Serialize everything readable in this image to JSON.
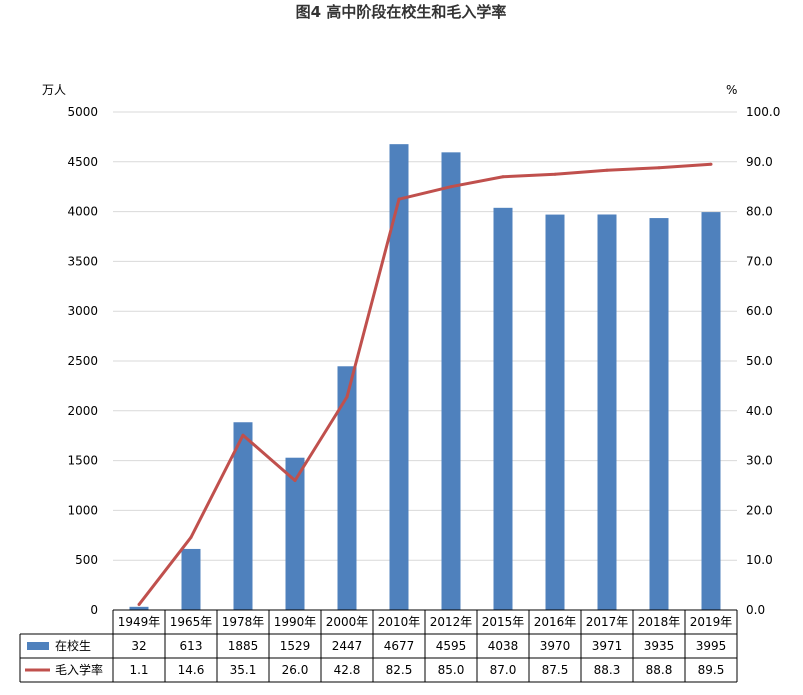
{
  "chart_data": {
    "type": "bar",
    "title": "图4 高中阶段在校生和毛入学率",
    "categories": [
      "1949年",
      "1965年",
      "1978年",
      "1990年",
      "2000年",
      "2010年",
      "2012年",
      "2015年",
      "2016年",
      "2017年",
      "2018年",
      "2019年"
    ],
    "series": [
      {
        "name": "在校生",
        "type": "bar",
        "axis": "left",
        "color": "#4f81bd",
        "values": [
          32,
          613,
          1885,
          1529,
          2447,
          4677,
          4595,
          4038,
          3970,
          3971,
          3935,
          3995
        ],
        "labels": [
          "32",
          "613",
          "1885",
          "1529",
          "2447",
          "4677",
          "4595",
          "4038",
          "3970",
          "3971",
          "3935",
          "3995"
        ]
      },
      {
        "name": "毛入学率",
        "type": "line",
        "axis": "right",
        "color": "#c0504d",
        "values": [
          1.1,
          14.6,
          35.1,
          26.0,
          42.8,
          82.5,
          85.0,
          87.0,
          87.5,
          88.3,
          88.8,
          89.5
        ],
        "labels": [
          "1.1",
          "14.6",
          "35.1",
          "26.0",
          "42.8",
          "82.5",
          "85.0",
          "87.0",
          "87.5",
          "88.3",
          "88.8",
          "89.5"
        ]
      }
    ],
    "ylabel": "万人",
    "y2label": "%",
    "ylim": [
      0,
      5000
    ],
    "y2lim": [
      0,
      100
    ],
    "yticks": [
      "0",
      "500",
      "1000",
      "1500",
      "2000",
      "2500",
      "3000",
      "3500",
      "4000",
      "4500",
      "5000"
    ],
    "y2ticks": [
      "0.0",
      "10.0",
      "20.0",
      "30.0",
      "40.0",
      "50.0",
      "60.0",
      "70.0",
      "80.0",
      "90.0",
      "100.0"
    ],
    "grid": true,
    "legend": "data-table"
  }
}
